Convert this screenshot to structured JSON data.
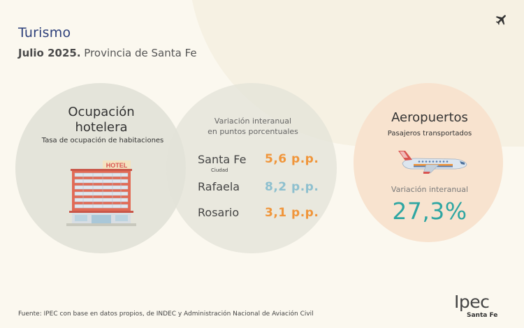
{
  "header": {
    "title": "Turismo",
    "subtitle_bold": "Julio 2025.",
    "subtitle_rest": " Provincia de Santa Fe",
    "corner_icon": "airplane-icon"
  },
  "hotel": {
    "title_line1": "Ocupación",
    "title_line2": "hotelera",
    "subtitle": "Tasa de ocupación de habitaciones",
    "sign": "HOTEL"
  },
  "variation": {
    "head_line1": "Variación interanual",
    "head_line2": "en puntos porcentuales",
    "rows": [
      {
        "city": "Santa Fe",
        "note": "Ciudad",
        "value": "5,6 p.p.",
        "color": "#f0953a"
      },
      {
        "city": "Rafaela",
        "note": "",
        "value": "8,2 p.p.",
        "color": "#8ec0cf"
      },
      {
        "city": "Rosario",
        "note": "",
        "value": "3,1 p.p.",
        "color": "#f0953a"
      }
    ]
  },
  "airports": {
    "title": "Aeropuertos",
    "subtitle": "Pasajeros transportados",
    "var_label": "Variación interanual",
    "var_value": "27,3%"
  },
  "footer": {
    "source": "Fuente: IPEC con base en datos propios, de INDEC y  Administración Nacional de Aviación Civil"
  },
  "logo": {
    "name": "Ipec",
    "sub": "Santa Fe"
  },
  "colors": {
    "title": "#2c3f7a",
    "accent_orange": "#f0953a",
    "accent_blue": "#8ec0cf",
    "accent_teal": "#2ea6a2",
    "circle_grey": "#e3e3d8",
    "circle_peach": "#f8e3cf"
  }
}
